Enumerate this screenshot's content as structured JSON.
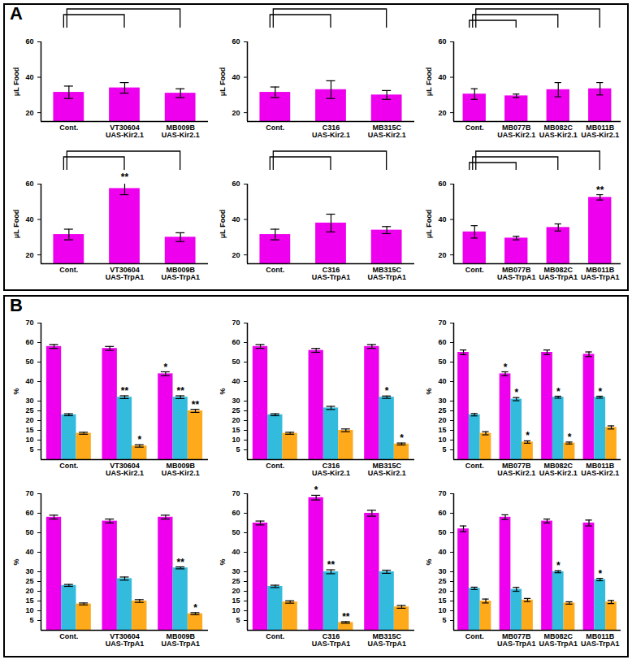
{
  "chart_data": [
    {
      "type": "bar",
      "panel": "A",
      "y_label": "μL Food",
      "categories": [
        "Cont.",
        "VT30604\nUAS-Kir2.1",
        "MB009B\nUAS-Kir2.1"
      ],
      "ylim": [
        15,
        60
      ],
      "yticks": [
        20,
        40,
        60
      ],
      "series": [
        {
          "color": "#ee00ee",
          "values": [
            31.5,
            34,
            31
          ],
          "errors": [
            3.5,
            3,
            2.5
          ],
          "significance": [
            null,
            null,
            null
          ]
        }
      ]
    },
    {
      "type": "bar",
      "panel": "A",
      "y_label": "μL Food",
      "categories": [
        "Cont.",
        "C316\nUAS-Kir2.1",
        "MB315C\nUAS-Kir2.1"
      ],
      "ylim": [
        15,
        60
      ],
      "yticks": [
        20,
        40,
        60
      ],
      "series": [
        {
          "color": "#ee00ee",
          "values": [
            31.5,
            33,
            30
          ],
          "errors": [
            3,
            5,
            2.5
          ],
          "significance": [
            null,
            null,
            null
          ]
        }
      ]
    },
    {
      "type": "bar",
      "panel": "A",
      "y_label": "μL Food",
      "categories": [
        "Cont.",
        "MB077B\nUAS-Kir2.1",
        "MB082C\nUAS-Kir2.1",
        "MB011B\nUAS-Kir2.1"
      ],
      "ylim": [
        15,
        60
      ],
      "yticks": [
        20,
        40,
        60
      ],
      "series": [
        {
          "color": "#ee00ee",
          "values": [
            30.5,
            29.5,
            33,
            33.5
          ],
          "errors": [
            3,
            1,
            4,
            3.5
          ],
          "significance": [
            null,
            null,
            null,
            null
          ]
        }
      ]
    },
    {
      "type": "bar",
      "panel": "A",
      "y_label": "μL Food",
      "categories": [
        "Cont.",
        "VT30604\nUAS-TrpA1",
        "MB009B\nUAS-TrpA1"
      ],
      "ylim": [
        15,
        60
      ],
      "yticks": [
        20,
        40,
        60
      ],
      "series": [
        {
          "color": "#ee00ee",
          "values": [
            31.5,
            57.5,
            30
          ],
          "errors": [
            3,
            3.5,
            2.5
          ],
          "significance": [
            null,
            "**",
            null
          ]
        }
      ]
    },
    {
      "type": "bar",
      "panel": "A",
      "y_label": "μL Food",
      "categories": [
        "Cont.",
        "C316\nUAS-TrpA1",
        "MB315C\nUAS-TrpA1"
      ],
      "ylim": [
        15,
        60
      ],
      "yticks": [
        20,
        40,
        60
      ],
      "series": [
        {
          "color": "#ee00ee",
          "values": [
            31.5,
            38,
            34
          ],
          "errors": [
            3,
            5,
            2
          ],
          "significance": [
            null,
            null,
            null
          ]
        }
      ]
    },
    {
      "type": "bar",
      "panel": "A",
      "y_label": "μL Food",
      "categories": [
        "Cont.",
        "MB077B\nUAS-TrpA1",
        "MB082C\nUAS-TrpA1",
        "MB011B\nUAS-TrpA1"
      ],
      "ylim": [
        15,
        60
      ],
      "yticks": [
        20,
        40,
        60
      ],
      "series": [
        {
          "color": "#ee00ee",
          "values": [
            33,
            29.5,
            35.5,
            52.5
          ],
          "errors": [
            3.5,
            1,
            2,
            1.5
          ],
          "significance": [
            null,
            null,
            null,
            "**"
          ]
        }
      ]
    },
    {
      "type": "bar",
      "panel": "B",
      "y_label": "%",
      "categories": [
        "Cont.",
        "VT30604\nUAS-Kir2.1",
        "MB009B\nUAS-Kir2.1"
      ],
      "ylim": [
        0,
        70
      ],
      "yticks": [
        5,
        10,
        15,
        20,
        25,
        30,
        40,
        50,
        60,
        70
      ],
      "series": [
        {
          "color": "#ee00ee",
          "values": [
            58,
            57,
            44
          ],
          "errors": [
            1,
            1,
            1
          ],
          "significance": [
            null,
            null,
            "*"
          ]
        },
        {
          "color": "#33bbdd",
          "values": [
            23,
            32,
            32
          ],
          "errors": [
            0.5,
            0.7,
            0.7
          ],
          "significance": [
            null,
            "**",
            "**"
          ]
        },
        {
          "color": "#ffaa1a",
          "values": [
            13.5,
            7,
            25
          ],
          "errors": [
            0.5,
            0.6,
            0.8
          ],
          "significance": [
            null,
            "*",
            "**"
          ]
        }
      ]
    },
    {
      "type": "bar",
      "panel": "B",
      "y_label": "%",
      "categories": [
        "Cont.",
        "C316\nUAS-Kir2.1",
        "MB315C\nUAS-Kir2.1"
      ],
      "ylim": [
        0,
        70
      ],
      "yticks": [
        5,
        10,
        15,
        20,
        25,
        30,
        40,
        50,
        60,
        70
      ],
      "series": [
        {
          "color": "#ee00ee",
          "values": [
            58,
            56,
            58
          ],
          "errors": [
            1,
            1,
            1
          ],
          "significance": [
            null,
            null,
            null
          ]
        },
        {
          "color": "#33bbdd",
          "values": [
            23,
            26.5,
            32
          ],
          "errors": [
            0.5,
            0.8,
            0.6
          ],
          "significance": [
            null,
            null,
            "*"
          ]
        },
        {
          "color": "#ffaa1a",
          "values": [
            13.5,
            15,
            8
          ],
          "errors": [
            0.5,
            0.7,
            0.5
          ],
          "significance": [
            null,
            null,
            "*"
          ]
        }
      ]
    },
    {
      "type": "bar",
      "panel": "B",
      "y_label": "%",
      "categories": [
        "Cont.",
        "MB077B\nUAS-Kir2.1",
        "MB082C\nUAS-Kir2.1",
        "MB011B\nUAS-Kir2.1"
      ],
      "ylim": [
        0,
        70
      ],
      "yticks": [
        5,
        10,
        15,
        20,
        25,
        30,
        40,
        50,
        60,
        70
      ],
      "series": [
        {
          "color": "#ee00ee",
          "values": [
            55,
            44,
            55,
            54
          ],
          "errors": [
            1.2,
            1,
            1.2,
            1.2
          ],
          "significance": [
            null,
            "*",
            null,
            null
          ]
        },
        {
          "color": "#33bbdd",
          "values": [
            23,
            31,
            32,
            32
          ],
          "errors": [
            0.6,
            0.8,
            0.5,
            0.5
          ],
          "significance": [
            null,
            "*",
            "*",
            "*"
          ]
        },
        {
          "color": "#ffaa1a",
          "values": [
            13.5,
            9,
            8.5,
            16.5
          ],
          "errors": [
            0.8,
            0.6,
            0.5,
            0.8
          ],
          "significance": [
            null,
            "*",
            "*",
            null
          ]
        }
      ]
    },
    {
      "type": "bar",
      "panel": "B",
      "y_label": "%",
      "categories": [
        "Cont.",
        "VT30604\nUAS-TrpA1",
        "MB009B\nUAS-TrpA1"
      ],
      "ylim": [
        0,
        70
      ],
      "yticks": [
        5,
        10,
        15,
        20,
        25,
        30,
        40,
        50,
        60,
        70
      ],
      "series": [
        {
          "color": "#ee00ee",
          "values": [
            58,
            56,
            58
          ],
          "errors": [
            1,
            1,
            1
          ],
          "significance": [
            null,
            null,
            null
          ]
        },
        {
          "color": "#33bbdd",
          "values": [
            23,
            26.5,
            32
          ],
          "errors": [
            0.5,
            0.8,
            0.5
          ],
          "significance": [
            null,
            null,
            "**"
          ]
        },
        {
          "color": "#ffaa1a",
          "values": [
            13.5,
            15,
            8.5
          ],
          "errors": [
            0.5,
            0.7,
            0.5
          ],
          "significance": [
            null,
            null,
            "*"
          ]
        }
      ]
    },
    {
      "type": "bar",
      "panel": "B",
      "y_label": "%",
      "categories": [
        "Cont.",
        "C316\nUAS-TrpA1",
        "MB315C\nUAS-TrpA1"
      ],
      "ylim": [
        0,
        70
      ],
      "yticks": [
        5,
        10,
        15,
        20,
        25,
        30,
        40,
        50,
        60,
        70
      ],
      "series": [
        {
          "color": "#ee00ee",
          "values": [
            55,
            68,
            60
          ],
          "errors": [
            1,
            1.2,
            1.5
          ],
          "significance": [
            null,
            "*",
            null
          ]
        },
        {
          "color": "#33bbdd",
          "values": [
            22.5,
            30,
            30
          ],
          "errors": [
            0.6,
            1,
            0.8
          ],
          "significance": [
            null,
            "**",
            null
          ]
        },
        {
          "color": "#ffaa1a",
          "values": [
            14.5,
            4,
            12
          ],
          "errors": [
            0.6,
            0.4,
            0.7
          ],
          "significance": [
            null,
            "**",
            null
          ]
        }
      ]
    },
    {
      "type": "bar",
      "panel": "B",
      "y_label": "%",
      "categories": [
        "Cont.",
        "MB077B\nUAS-TrpA1",
        "MB082C\nUAS-TrpA1",
        "MB011B\nUAS-TrpA1"
      ],
      "ylim": [
        0,
        70
      ],
      "yticks": [
        5,
        10,
        15,
        20,
        25,
        30,
        40,
        50,
        60,
        70
      ],
      "series": [
        {
          "color": "#ee00ee",
          "values": [
            52,
            58,
            56,
            55
          ],
          "errors": [
            1.5,
            1.2,
            1,
            1.5
          ],
          "significance": [
            null,
            null,
            null,
            null
          ]
        },
        {
          "color": "#33bbdd",
          "values": [
            21.5,
            21,
            30,
            26
          ],
          "errors": [
            0.6,
            1,
            0.5,
            0.6
          ],
          "significance": [
            null,
            null,
            "*",
            "*"
          ]
        },
        {
          "color": "#ffaa1a",
          "values": [
            15,
            15.5,
            14,
            14.5
          ],
          "errors": [
            1,
            0.8,
            0.6,
            0.8
          ],
          "significance": [
            null,
            null,
            null,
            null
          ]
        }
      ]
    }
  ]
}
